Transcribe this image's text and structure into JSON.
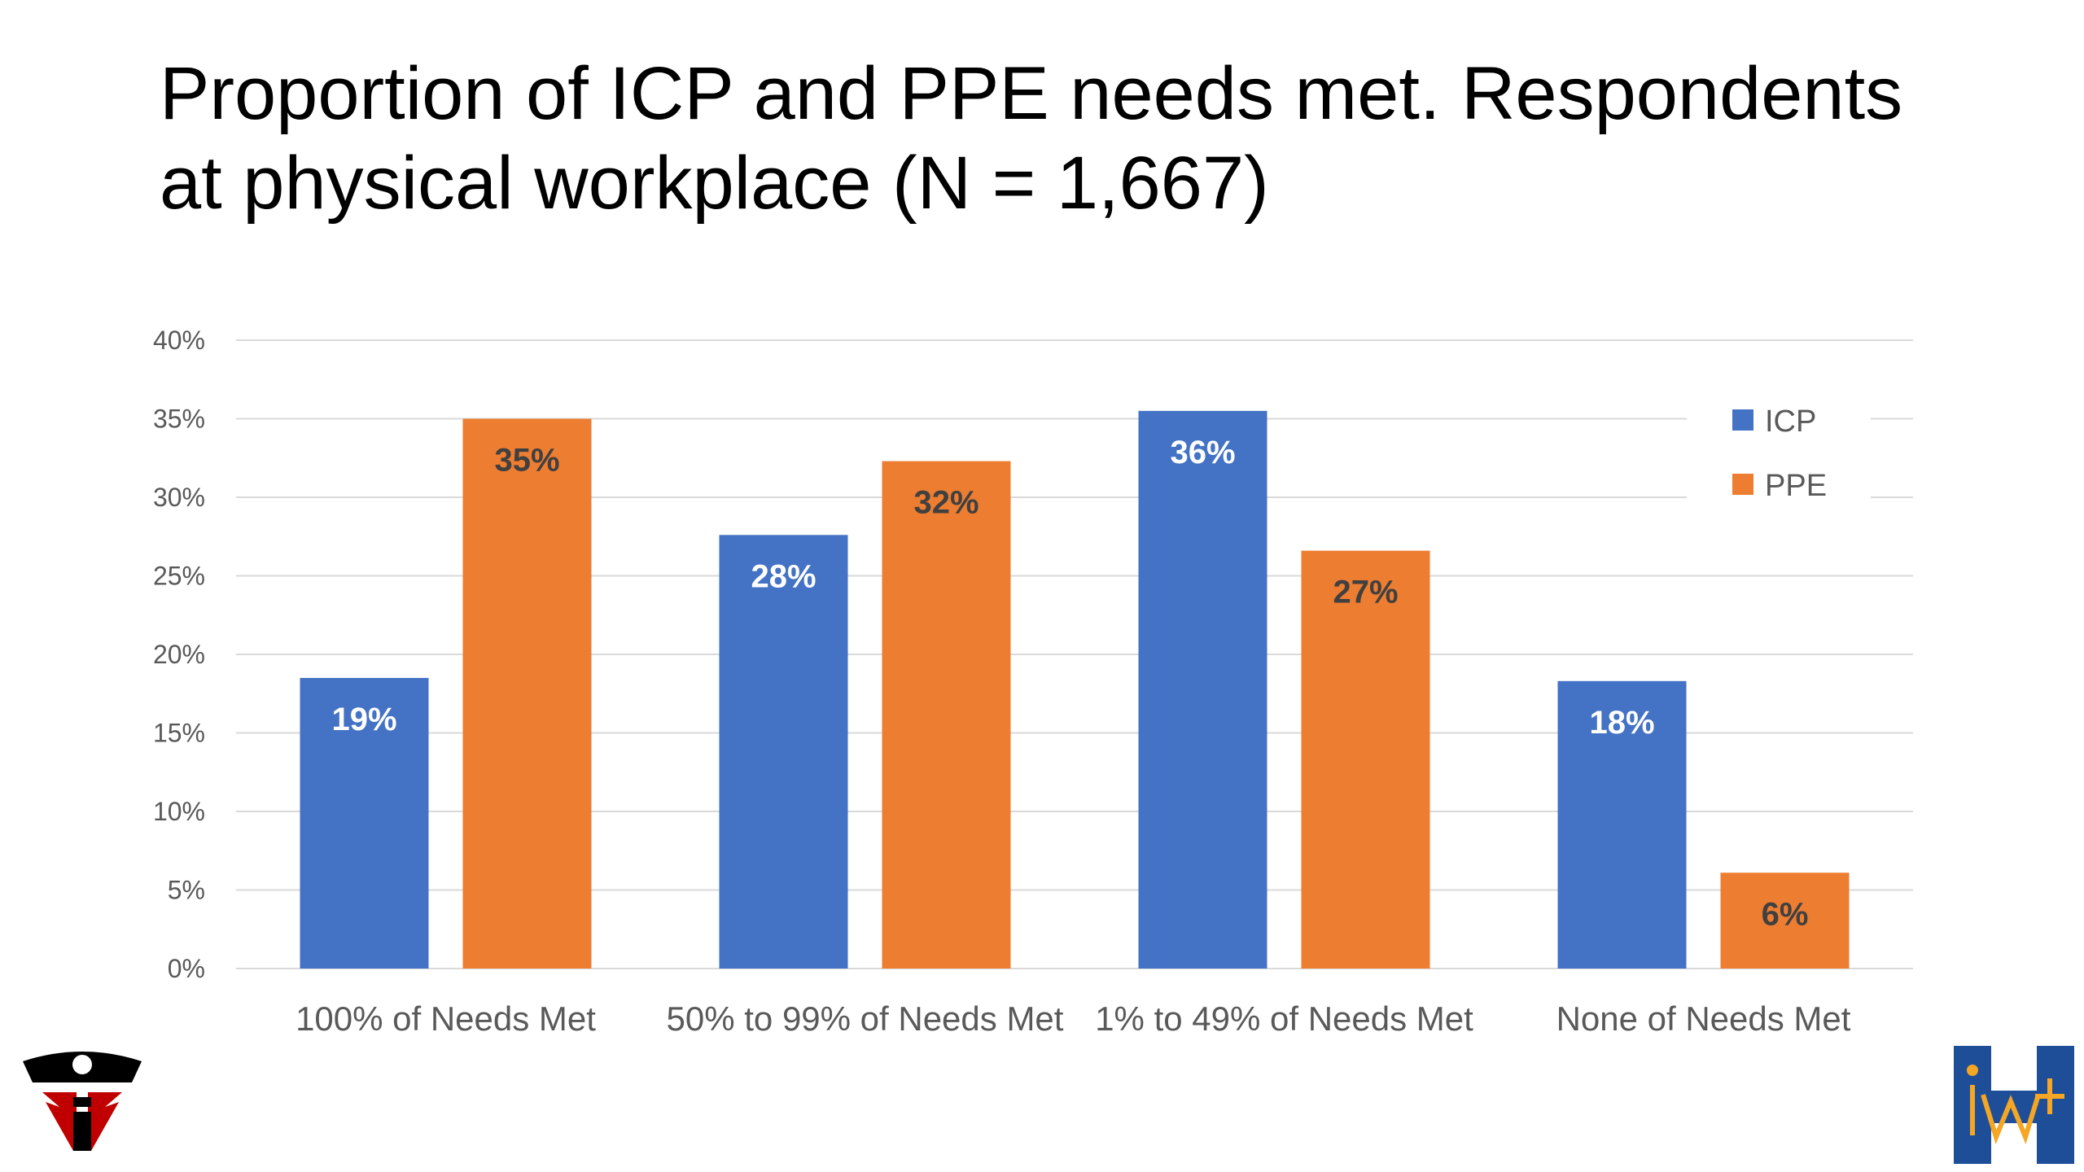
{
  "slide": {
    "title": "Proportion of ICP and PPE needs met. Respondents at physical workplace (N = 1,667)"
  },
  "chart_data": {
    "type": "bar",
    "title": "",
    "xlabel": "",
    "ylabel": "",
    "categories": [
      "100% of Needs Met",
      "50% to 99% of Needs Met",
      "1% to 49% of Needs Met",
      "None of Needs Met"
    ],
    "series": [
      {
        "name": "ICP",
        "values": [
          18.5,
          27.6,
          35.5,
          18.3
        ],
        "labels": [
          "19%",
          "28%",
          "36%",
          "18%"
        ],
        "color": "#4472C4",
        "label_color": "#FFFFFF"
      },
      {
        "name": "PPE",
        "values": [
          35.0,
          32.3,
          26.6,
          6.1
        ],
        "labels": [
          "35%",
          "32%",
          "27%",
          "6%"
        ],
        "color": "#ED7D31",
        "label_color": "#404040"
      }
    ],
    "yticks": [
      "0%",
      "5%",
      "10%",
      "15%",
      "20%",
      "25%",
      "30%",
      "35%",
      "40%"
    ],
    "ylim": [
      0,
      40
    ],
    "grid": true,
    "legend_position": "top-right"
  },
  "logos": {
    "left": {
      "icon": "helmet-shield-logo",
      "colors": [
        "#000000",
        "#C00000"
      ]
    },
    "right": {
      "icon": "iwh-logo",
      "text": "IW+H",
      "colors": [
        "#1F4E99",
        "#F5A623"
      ]
    }
  }
}
